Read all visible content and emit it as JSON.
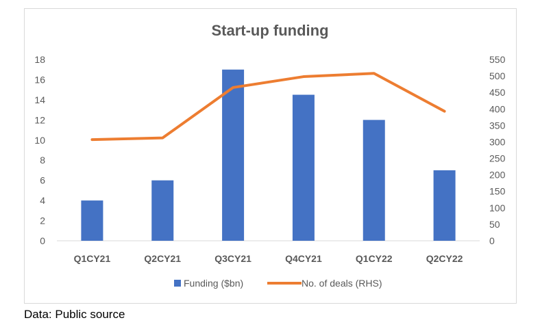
{
  "chart_data": {
    "type": "bar",
    "title": "Start-up funding",
    "categories": [
      "Q1CY21",
      "Q2CY21",
      "Q3CY21",
      "Q4CY21",
      "Q1CY22",
      "Q2CY22"
    ],
    "series": [
      {
        "name": "Funding ($bn)",
        "type": "bar",
        "axis": "left",
        "color": "#4472C4",
        "values": [
          4,
          6,
          17,
          14.5,
          12,
          7
        ]
      },
      {
        "name": "No. of deals (RHS)",
        "type": "line",
        "axis": "right",
        "color": "#ED7D31",
        "values": [
          307,
          312,
          465,
          498,
          508,
          393
        ]
      }
    ],
    "y_left": {
      "range": [
        0,
        18
      ],
      "ticks": [
        "0",
        "2",
        "4",
        "6",
        "8",
        "10",
        "12",
        "14",
        "16",
        "18"
      ]
    },
    "y_right": {
      "range": [
        0,
        550
      ],
      "ticks": [
        "0",
        "50",
        "100",
        "150",
        "200",
        "250",
        "300",
        "350",
        "400",
        "450",
        "500",
        "550"
      ]
    },
    "grid": false,
    "legend_position": "bottom"
  },
  "footer": {
    "source": "Data: Public source"
  }
}
